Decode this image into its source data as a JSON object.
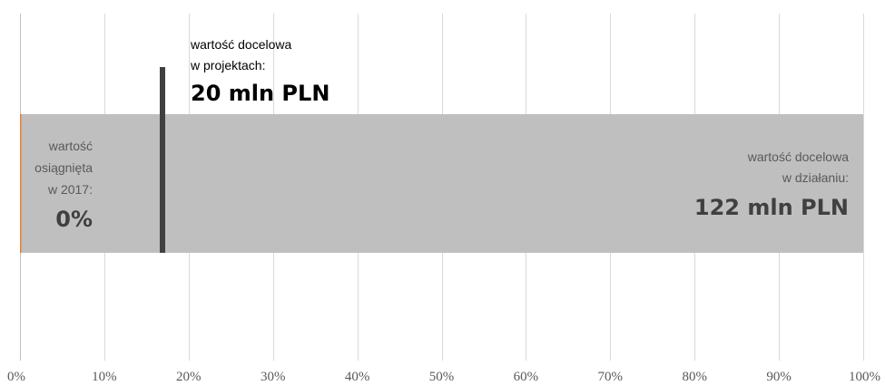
{
  "chart_data": {
    "type": "bar",
    "orientation": "horizontal",
    "xlim": [
      0,
      100
    ],
    "grid": true,
    "ticks": [
      "0%",
      "10%",
      "20%",
      "30%",
      "40%",
      "50%",
      "60%",
      "70%",
      "80%",
      "90%",
      "100%"
    ],
    "bars": [
      {
        "value": 100,
        "color": "#bfbfbf"
      },
      {
        "value": 0,
        "color": "#ed7d31"
      }
    ],
    "marker": {
      "value": 16.9,
      "color": "#404040"
    },
    "colors": {
      "grid": "#d9d9d9",
      "axis": "#bfbfbf",
      "text_dark": "#000000",
      "text_gray": "#595959"
    },
    "annotations": {
      "project_target": {
        "line1": "wartość docelowa",
        "line2": "w projektach:",
        "value": "20 mln PLN"
      },
      "achieved": {
        "line1": "wartość",
        "line2": "osiągnięta",
        "line3": "w 2017:",
        "value": "0%"
      },
      "action_target": {
        "line1": "wartość docelowa",
        "line2": "w działaniu:",
        "value": "122 mln PLN"
      }
    }
  }
}
